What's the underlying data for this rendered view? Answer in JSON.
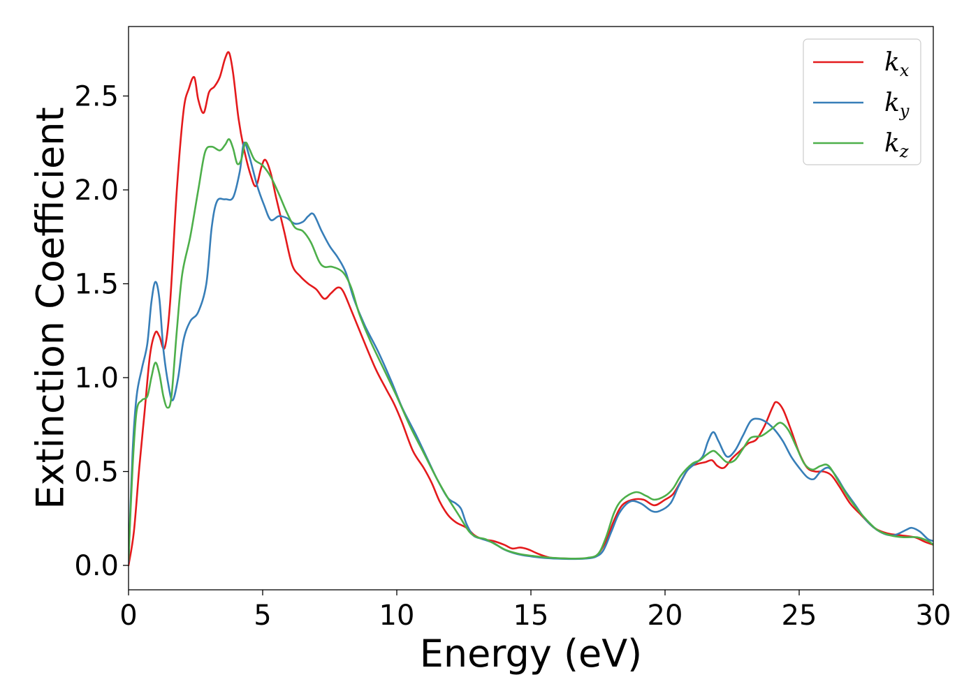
{
  "chart_data": {
    "type": "line",
    "xlabel": "Energy (eV)",
    "ylabel": "Extinction Coefficient",
    "xlim": [
      0,
      30
    ],
    "ylim": [
      -0.13,
      2.87
    ],
    "xticks": [
      0,
      5,
      10,
      15,
      20,
      25,
      30
    ],
    "yticks": [
      0.0,
      0.5,
      1.0,
      1.5,
      2.0,
      2.5
    ],
    "xtick_labels": [
      "0",
      "5",
      "10",
      "15",
      "20",
      "25",
      "30"
    ],
    "ytick_labels": [
      "0.0",
      "0.5",
      "1.0",
      "1.5",
      "2.0",
      "2.5"
    ],
    "grid": false,
    "legend_position": "top-right",
    "series": [
      {
        "name": "k",
        "subscript": "x",
        "color": "#e41a1c",
        "points": [
          [
            0,
            0.0
          ],
          [
            0.2,
            0.18
          ],
          [
            0.4,
            0.52
          ],
          [
            0.6,
            0.82
          ],
          [
            0.8,
            1.12
          ],
          [
            1.0,
            1.24
          ],
          [
            1.15,
            1.22
          ],
          [
            1.35,
            1.16
          ],
          [
            1.55,
            1.4
          ],
          [
            1.8,
            2.0
          ],
          [
            2.05,
            2.42
          ],
          [
            2.25,
            2.54
          ],
          [
            2.45,
            2.6
          ],
          [
            2.6,
            2.48
          ],
          [
            2.8,
            2.41
          ],
          [
            3.0,
            2.52
          ],
          [
            3.2,
            2.55
          ],
          [
            3.4,
            2.6
          ],
          [
            3.6,
            2.7
          ],
          [
            3.75,
            2.73
          ],
          [
            3.9,
            2.62
          ],
          [
            4.1,
            2.38
          ],
          [
            4.3,
            2.22
          ],
          [
            4.55,
            2.08
          ],
          [
            4.75,
            2.02
          ],
          [
            4.95,
            2.12
          ],
          [
            5.1,
            2.16
          ],
          [
            5.3,
            2.09
          ],
          [
            5.5,
            1.96
          ],
          [
            5.8,
            1.78
          ],
          [
            6.1,
            1.6
          ],
          [
            6.4,
            1.54
          ],
          [
            6.7,
            1.5
          ],
          [
            7.0,
            1.47
          ],
          [
            7.3,
            1.42
          ],
          [
            7.55,
            1.45
          ],
          [
            7.8,
            1.48
          ],
          [
            8.0,
            1.46
          ],
          [
            8.3,
            1.36
          ],
          [
            8.7,
            1.22
          ],
          [
            9.2,
            1.05
          ],
          [
            9.6,
            0.94
          ],
          [
            9.9,
            0.86
          ],
          [
            10.2,
            0.76
          ],
          [
            10.6,
            0.61
          ],
          [
            11.0,
            0.52
          ],
          [
            11.3,
            0.44
          ],
          [
            11.6,
            0.34
          ],
          [
            11.9,
            0.27
          ],
          [
            12.2,
            0.23
          ],
          [
            12.6,
            0.2
          ],
          [
            12.9,
            0.16
          ],
          [
            13.2,
            0.14
          ],
          [
            13.6,
            0.13
          ],
          [
            14.0,
            0.11
          ],
          [
            14.3,
            0.09
          ],
          [
            14.6,
            0.095
          ],
          [
            14.9,
            0.085
          ],
          [
            15.3,
            0.06
          ],
          [
            15.7,
            0.042
          ],
          [
            16.2,
            0.037
          ],
          [
            16.7,
            0.036
          ],
          [
            17.2,
            0.04
          ],
          [
            17.5,
            0.06
          ],
          [
            17.8,
            0.13
          ],
          [
            18.1,
            0.24
          ],
          [
            18.4,
            0.32
          ],
          [
            18.8,
            0.35
          ],
          [
            19.2,
            0.35
          ],
          [
            19.6,
            0.32
          ],
          [
            20.0,
            0.35
          ],
          [
            20.3,
            0.38
          ],
          [
            20.6,
            0.45
          ],
          [
            20.9,
            0.52
          ],
          [
            21.2,
            0.54
          ],
          [
            21.5,
            0.55
          ],
          [
            21.75,
            0.56
          ],
          [
            21.95,
            0.53
          ],
          [
            22.2,
            0.52
          ],
          [
            22.5,
            0.57
          ],
          [
            22.8,
            0.61
          ],
          [
            23.1,
            0.65
          ],
          [
            23.4,
            0.67
          ],
          [
            23.7,
            0.74
          ],
          [
            24.0,
            0.84
          ],
          [
            24.15,
            0.87
          ],
          [
            24.4,
            0.83
          ],
          [
            24.7,
            0.72
          ],
          [
            25.0,
            0.6
          ],
          [
            25.3,
            0.52
          ],
          [
            25.6,
            0.5
          ],
          [
            25.9,
            0.5
          ],
          [
            26.2,
            0.48
          ],
          [
            26.5,
            0.42
          ],
          [
            26.9,
            0.33
          ],
          [
            27.3,
            0.27
          ],
          [
            27.8,
            0.2
          ],
          [
            28.3,
            0.17
          ],
          [
            28.8,
            0.16
          ],
          [
            29.3,
            0.15
          ],
          [
            29.7,
            0.125
          ],
          [
            30.0,
            0.11
          ]
        ]
      },
      {
        "name": "k",
        "subscript": "y",
        "color": "#377eb8",
        "points": [
          [
            0,
            0.02
          ],
          [
            0.15,
            0.6
          ],
          [
            0.3,
            0.9
          ],
          [
            0.5,
            1.05
          ],
          [
            0.7,
            1.18
          ],
          [
            0.85,
            1.4
          ],
          [
            1.0,
            1.51
          ],
          [
            1.15,
            1.42
          ],
          [
            1.3,
            1.15
          ],
          [
            1.5,
            0.95
          ],
          [
            1.65,
            0.88
          ],
          [
            1.85,
            1.0
          ],
          [
            2.05,
            1.2
          ],
          [
            2.3,
            1.3
          ],
          [
            2.6,
            1.35
          ],
          [
            2.9,
            1.5
          ],
          [
            3.1,
            1.8
          ],
          [
            3.3,
            1.94
          ],
          [
            3.6,
            1.95
          ],
          [
            3.9,
            1.96
          ],
          [
            4.15,
            2.1
          ],
          [
            4.3,
            2.25
          ],
          [
            4.5,
            2.18
          ],
          [
            4.8,
            2.02
          ],
          [
            5.05,
            1.92
          ],
          [
            5.3,
            1.84
          ],
          [
            5.6,
            1.86
          ],
          [
            5.9,
            1.85
          ],
          [
            6.2,
            1.82
          ],
          [
            6.5,
            1.83
          ],
          [
            6.7,
            1.86
          ],
          [
            6.9,
            1.87
          ],
          [
            7.2,
            1.78
          ],
          [
            7.5,
            1.7
          ],
          [
            7.8,
            1.64
          ],
          [
            8.1,
            1.56
          ],
          [
            8.4,
            1.42
          ],
          [
            8.8,
            1.28
          ],
          [
            9.3,
            1.14
          ],
          [
            9.8,
            0.98
          ],
          [
            10.2,
            0.84
          ],
          [
            10.7,
            0.7
          ],
          [
            11.1,
            0.58
          ],
          [
            11.5,
            0.46
          ],
          [
            11.9,
            0.36
          ],
          [
            12.2,
            0.33
          ],
          [
            12.4,
            0.3
          ],
          [
            12.6,
            0.22
          ],
          [
            12.85,
            0.16
          ],
          [
            13.2,
            0.14
          ],
          [
            13.6,
            0.12
          ],
          [
            14.0,
            0.085
          ],
          [
            14.5,
            0.06
          ],
          [
            15.0,
            0.048
          ],
          [
            15.5,
            0.04
          ],
          [
            16.0,
            0.036
          ],
          [
            16.5,
            0.034
          ],
          [
            17.0,
            0.036
          ],
          [
            17.4,
            0.045
          ],
          [
            17.7,
            0.08
          ],
          [
            18.0,
            0.18
          ],
          [
            18.3,
            0.28
          ],
          [
            18.7,
            0.34
          ],
          [
            19.1,
            0.33
          ],
          [
            19.5,
            0.29
          ],
          [
            19.8,
            0.29
          ],
          [
            20.2,
            0.33
          ],
          [
            20.5,
            0.42
          ],
          [
            20.8,
            0.5
          ],
          [
            21.1,
            0.54
          ],
          [
            21.4,
            0.58
          ],
          [
            21.6,
            0.66
          ],
          [
            21.8,
            0.71
          ],
          [
            22.0,
            0.66
          ],
          [
            22.3,
            0.58
          ],
          [
            22.6,
            0.61
          ],
          [
            22.9,
            0.69
          ],
          [
            23.2,
            0.77
          ],
          [
            23.5,
            0.78
          ],
          [
            23.8,
            0.76
          ],
          [
            24.1,
            0.72
          ],
          [
            24.4,
            0.66
          ],
          [
            24.7,
            0.58
          ],
          [
            25.0,
            0.52
          ],
          [
            25.3,
            0.47
          ],
          [
            25.55,
            0.46
          ],
          [
            25.8,
            0.5
          ],
          [
            26.1,
            0.52
          ],
          [
            26.4,
            0.47
          ],
          [
            26.7,
            0.4
          ],
          [
            27.1,
            0.32
          ],
          [
            27.5,
            0.24
          ],
          [
            28.0,
            0.18
          ],
          [
            28.5,
            0.16
          ],
          [
            29.0,
            0.19
          ],
          [
            29.2,
            0.2
          ],
          [
            29.5,
            0.18
          ],
          [
            29.8,
            0.14
          ],
          [
            30.0,
            0.13
          ]
        ]
      },
      {
        "name": "k",
        "subscript": "z",
        "color": "#4daf4a",
        "points": [
          [
            0,
            0.03
          ],
          [
            0.15,
            0.52
          ],
          [
            0.3,
            0.82
          ],
          [
            0.5,
            0.88
          ],
          [
            0.7,
            0.9
          ],
          [
            0.85,
            1.0
          ],
          [
            1.0,
            1.08
          ],
          [
            1.15,
            1.02
          ],
          [
            1.3,
            0.9
          ],
          [
            1.45,
            0.84
          ],
          [
            1.6,
            0.9
          ],
          [
            1.8,
            1.25
          ],
          [
            2.0,
            1.55
          ],
          [
            2.3,
            1.75
          ],
          [
            2.6,
            2.0
          ],
          [
            2.85,
            2.2
          ],
          [
            3.1,
            2.23
          ],
          [
            3.4,
            2.21
          ],
          [
            3.6,
            2.24
          ],
          [
            3.75,
            2.27
          ],
          [
            3.9,
            2.22
          ],
          [
            4.05,
            2.14
          ],
          [
            4.2,
            2.16
          ],
          [
            4.35,
            2.25
          ],
          [
            4.5,
            2.22
          ],
          [
            4.7,
            2.16
          ],
          [
            5.0,
            2.13
          ],
          [
            5.3,
            2.07
          ],
          [
            5.6,
            1.98
          ],
          [
            5.9,
            1.88
          ],
          [
            6.2,
            1.8
          ],
          [
            6.5,
            1.78
          ],
          [
            6.8,
            1.72
          ],
          [
            7.1,
            1.62
          ],
          [
            7.3,
            1.59
          ],
          [
            7.6,
            1.59
          ],
          [
            8.0,
            1.56
          ],
          [
            8.3,
            1.48
          ],
          [
            8.6,
            1.34
          ],
          [
            9.0,
            1.2
          ],
          [
            9.5,
            1.05
          ],
          [
            10.0,
            0.9
          ],
          [
            10.5,
            0.74
          ],
          [
            11.0,
            0.6
          ],
          [
            11.5,
            0.46
          ],
          [
            11.9,
            0.36
          ],
          [
            12.3,
            0.27
          ],
          [
            12.7,
            0.18
          ],
          [
            13.0,
            0.15
          ],
          [
            13.3,
            0.14
          ],
          [
            13.7,
            0.11
          ],
          [
            14.1,
            0.08
          ],
          [
            14.6,
            0.06
          ],
          [
            15.1,
            0.05
          ],
          [
            15.6,
            0.042
          ],
          [
            16.1,
            0.038
          ],
          [
            16.6,
            0.036
          ],
          [
            17.1,
            0.04
          ],
          [
            17.5,
            0.06
          ],
          [
            17.8,
            0.15
          ],
          [
            18.1,
            0.28
          ],
          [
            18.4,
            0.35
          ],
          [
            18.9,
            0.39
          ],
          [
            19.3,
            0.37
          ],
          [
            19.6,
            0.35
          ],
          [
            20.0,
            0.37
          ],
          [
            20.3,
            0.41
          ],
          [
            20.6,
            0.48
          ],
          [
            21.0,
            0.54
          ],
          [
            21.3,
            0.56
          ],
          [
            21.55,
            0.59
          ],
          [
            21.8,
            0.61
          ],
          [
            22.0,
            0.59
          ],
          [
            22.3,
            0.55
          ],
          [
            22.6,
            0.56
          ],
          [
            22.9,
            0.62
          ],
          [
            23.2,
            0.68
          ],
          [
            23.6,
            0.69
          ],
          [
            24.0,
            0.73
          ],
          [
            24.3,
            0.76
          ],
          [
            24.6,
            0.72
          ],
          [
            24.9,
            0.63
          ],
          [
            25.2,
            0.54
          ],
          [
            25.5,
            0.51
          ],
          [
            25.8,
            0.53
          ],
          [
            26.1,
            0.53
          ],
          [
            26.5,
            0.44
          ],
          [
            26.9,
            0.35
          ],
          [
            27.4,
            0.26
          ],
          [
            27.9,
            0.19
          ],
          [
            28.4,
            0.16
          ],
          [
            28.9,
            0.15
          ],
          [
            29.4,
            0.15
          ],
          [
            29.8,
            0.13
          ],
          [
            30.0,
            0.11
          ]
        ]
      }
    ]
  }
}
